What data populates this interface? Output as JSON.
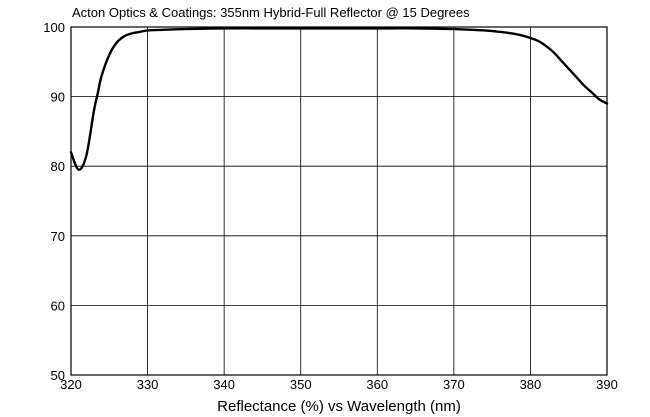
{
  "chart_data": {
    "type": "line",
    "title": "Acton Optics & Coatings: 355nm Hybrid-Full Reflector @ 15 Degrees",
    "xlabel": "Reflectance (%)  vs  Wavelength (nm)",
    "ylabel": "",
    "xlim": [
      320,
      390
    ],
    "ylim": [
      50,
      100
    ],
    "xticks": [
      320,
      330,
      340,
      350,
      360,
      370,
      380,
      390
    ],
    "yticks": [
      50,
      60,
      70,
      80,
      90,
      100
    ],
    "grid": true,
    "legend": "none",
    "series": [
      {
        "color": "#000000",
        "x": [
          320.0,
          321.0,
          322.0,
          323.0,
          323.5,
          324.0,
          325.0,
          326.0,
          327.0,
          328.0,
          329.0,
          330.0,
          332.0,
          335.0,
          340.0,
          345.0,
          350.0,
          355.0,
          360.0,
          365.0,
          370.0,
          374.0,
          376.0,
          378.0,
          379.5,
          381.0,
          382.0,
          383.0,
          384.0,
          385.0,
          386.0,
          387.0,
          388.0,
          389.0,
          390.0
        ],
        "y": [
          82.0,
          79.5,
          81.5,
          88.0,
          90.5,
          93.0,
          96.0,
          97.8,
          98.7,
          99.1,
          99.3,
          99.5,
          99.6,
          99.7,
          99.8,
          99.8,
          99.8,
          99.8,
          99.8,
          99.8,
          99.7,
          99.5,
          99.3,
          99.0,
          98.6,
          98.0,
          97.3,
          96.4,
          95.2,
          94.0,
          92.8,
          91.6,
          90.6,
          89.6,
          89.0
        ]
      }
    ]
  }
}
